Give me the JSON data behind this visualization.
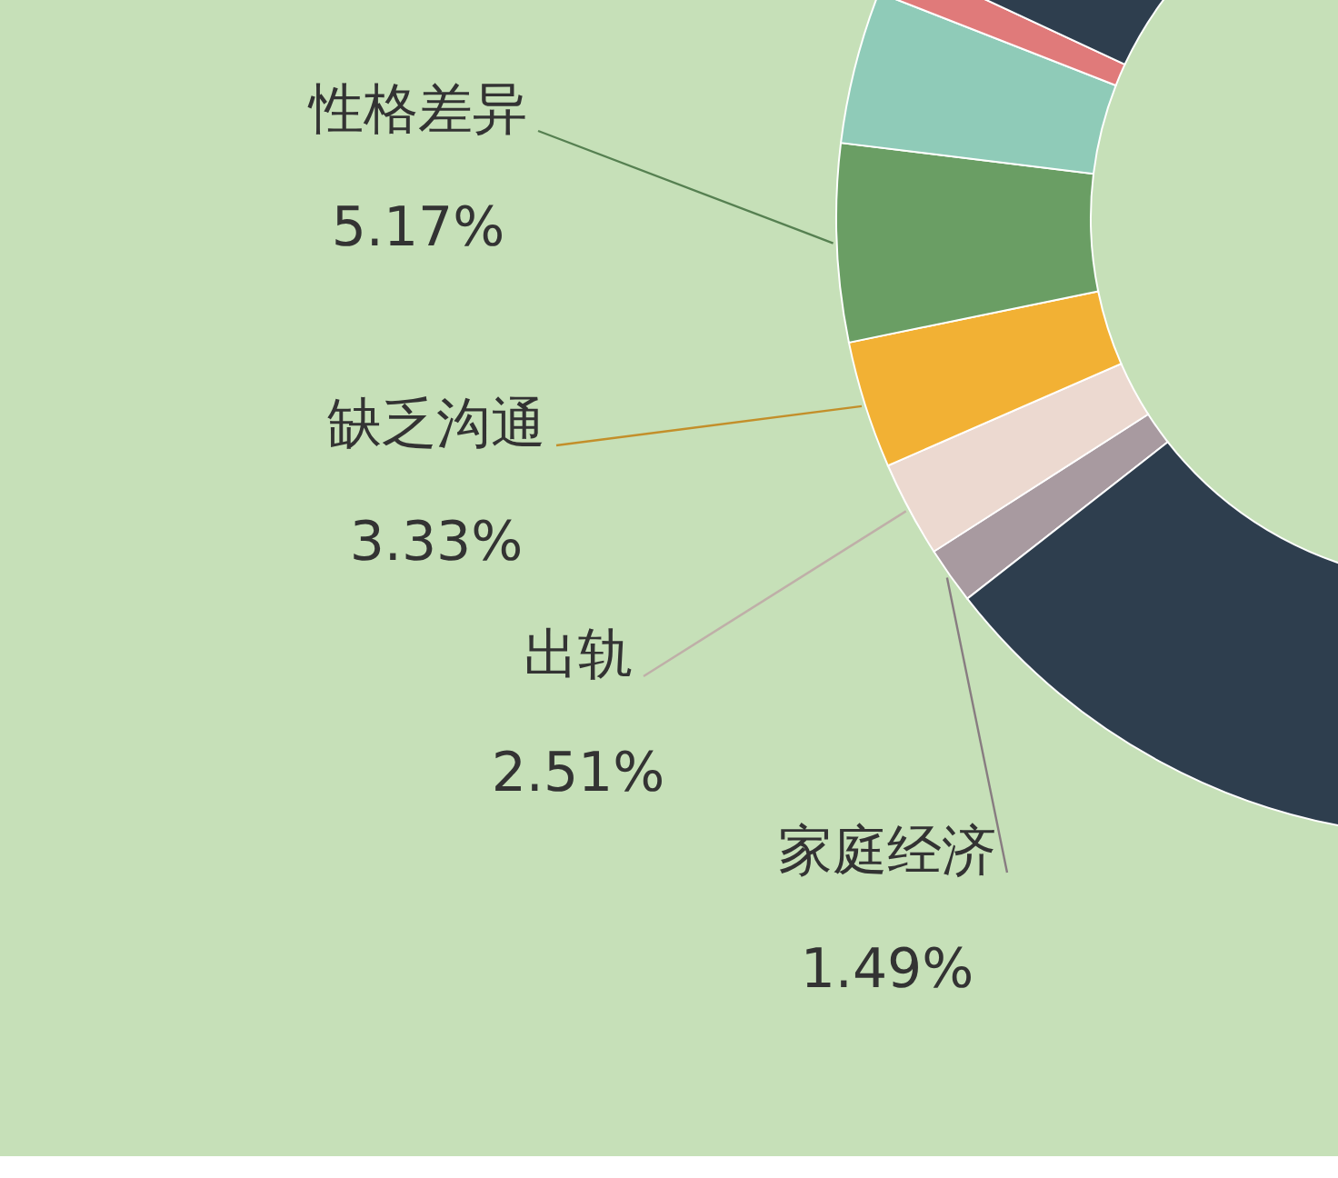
{
  "chart_data": {
    "type": "donut",
    "categories": [
      "家庭经济",
      "出轨",
      "缺乏沟通",
      "性格差异",
      null,
      null,
      null
    ],
    "values": [
      1.49,
      2.51,
      3.33,
      5.17,
      4,
      1,
      82.5
    ],
    "colors": [
      "#a89aa0",
      "#ecd9d0",
      "#f2b134",
      "#6a9e64",
      "#8fcbb8",
      "#e07a7a",
      "#2e3e4e"
    ],
    "value_labels": [
      "1.49%",
      "2.51%",
      "3.33%",
      "5.17%",
      null,
      null,
      null
    ]
  }
}
